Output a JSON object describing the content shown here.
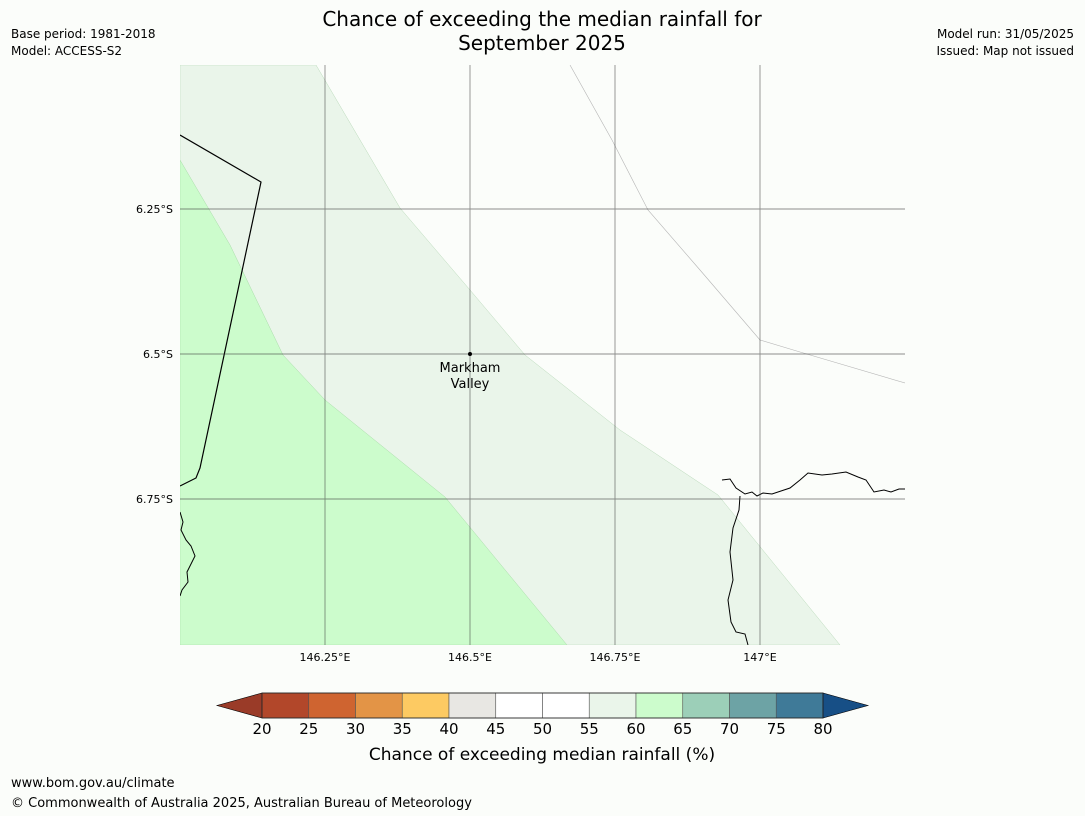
{
  "header": {
    "title_line1": "Chance of exceeding the median rainfall for",
    "title_line2": "September 2025",
    "base_period": "Base period: 1981-2018",
    "model": "Model: ACCESS-S2",
    "model_run": "Model run: 31/05/2025",
    "issued": "Issued: Map not issued"
  },
  "map": {
    "lat_labels": [
      "6.25°S",
      "6.5°S",
      "6.75°S"
    ],
    "lon_labels": [
      "146.25°E",
      "146.5°E",
      "146.75°E",
      "147°E"
    ],
    "place": {
      "name_line1": "Markham",
      "name_line2": "Valley"
    },
    "colors": {
      "zone_60_65": "#ccfccc",
      "zone_55_60": "#eaf5ea",
      "zone_50_55": "#fbfdfa",
      "background": "#fbfdfa"
    }
  },
  "legend": {
    "title": "Chance of exceeding median rainfall (%)",
    "ticks": [
      "20",
      "25",
      "30",
      "35",
      "40",
      "45",
      "50",
      "55",
      "60",
      "65",
      "70",
      "75",
      "80"
    ],
    "colors": [
      "#9a3b28",
      "#b2472a",
      "#cf6430",
      "#e39446",
      "#fdca62",
      "#e8e7e3",
      "#ffffff",
      "#ffffff",
      "#eaf5ea",
      "#ccfccc",
      "#9ccfb8",
      "#6da3a5",
      "#3f7a98",
      "#174f86"
    ]
  },
  "footer": {
    "url": "www.bom.gov.au/climate",
    "copyright": "© Commonwealth of Australia 2025, Australian Bureau of Meteorology"
  }
}
